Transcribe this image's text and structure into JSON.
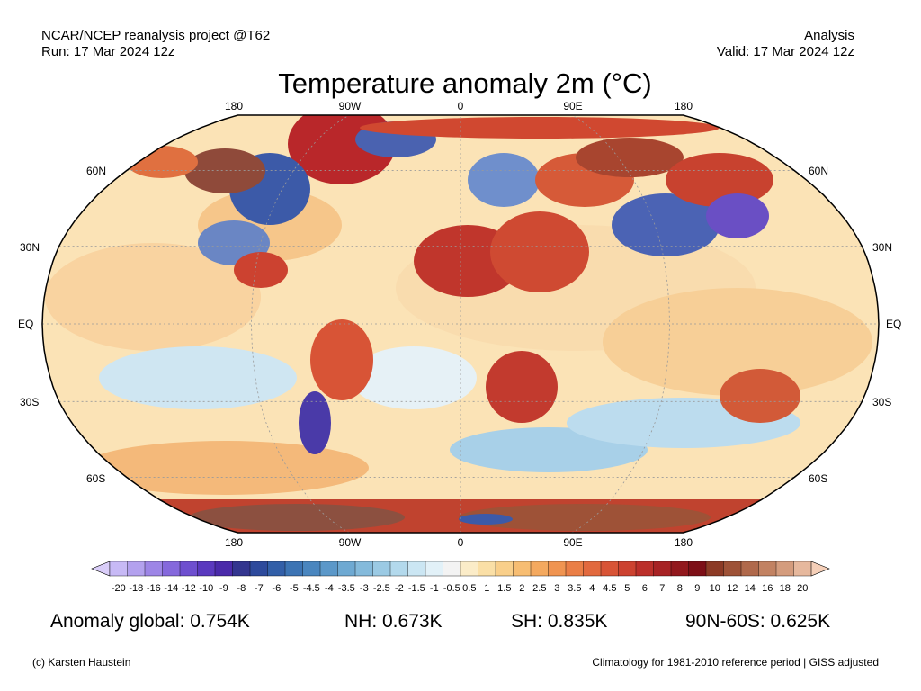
{
  "header": {
    "source": "NCAR/NCEP reanalysis project @T62",
    "run": "Run: 17 Mar 2024 12z",
    "product": "Analysis",
    "valid": "Valid: 17 Mar 2024 12z"
  },
  "title": "Temperature anomaly 2m (°C)",
  "map": {
    "projection": "Robinson",
    "lon_labels": [
      "180",
      "90W",
      "0",
      "90E",
      "180"
    ],
    "lat_labels_left": [
      "60N",
      "30N",
      "EQ",
      "30S",
      "60S"
    ],
    "lat_labels_right": [
      "60N",
      "30N",
      "EQ",
      "30S",
      "60S"
    ]
  },
  "colorbar": {
    "labels": [
      "-20",
      "-18",
      "-16",
      "-14",
      "-12",
      "-10",
      "-9",
      "-8",
      "-7",
      "-6",
      "-5",
      "-4.5",
      "-4",
      "-3.5",
      "-3",
      "-2.5",
      "-2",
      "-1.5",
      "-1",
      "-0.5",
      "0.5",
      "1",
      "1.5",
      "2",
      "2.5",
      "3",
      "3.5",
      "4",
      "4.5",
      "5",
      "6",
      "7",
      "8",
      "9",
      "10",
      "12",
      "14",
      "16",
      "18",
      "20"
    ],
    "colors": [
      "#c7b9f5",
      "#b3a1ee",
      "#9d85e6",
      "#8568dc",
      "#6e4fcf",
      "#5a39bf",
      "#4a2aaa",
      "#33358f",
      "#2d4a9c",
      "#325fa8",
      "#3c74b4",
      "#4a86bf",
      "#5b98c9",
      "#6ea9d2",
      "#84badb",
      "#9bcae4",
      "#b3d9ec",
      "#cbe6f3",
      "#e2f1f8",
      "#f3f3f3",
      "#fbecc8",
      "#fadfa6",
      "#f9cf8a",
      "#f7bd72",
      "#f4a95f",
      "#f09451",
      "#ea7e46",
      "#e2693e",
      "#d85436",
      "#cc4230",
      "#bb2f2a",
      "#a72224",
      "#92181d",
      "#7d0f17",
      "#8c3a25",
      "#9e5237",
      "#b0694b",
      "#c28262",
      "#d49c7d",
      "#e6b89d"
    ],
    "under_color": "#d9cdf8",
    "over_color": "#f5cfb8"
  },
  "stats": {
    "global": "Anomaly global: 0.754K",
    "nh": "NH: 0.673K",
    "sh": "SH: 0.835K",
    "arctic": "90N-60S: 0.625K"
  },
  "footer": {
    "credit": "(c) Karsten Haustein",
    "note": "Climatology for 1981-2010 reference period | GISS adjusted"
  }
}
